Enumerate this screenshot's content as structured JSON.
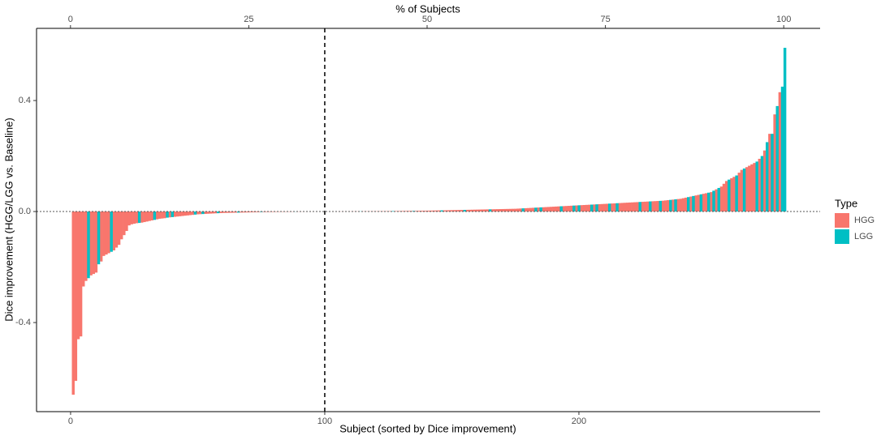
{
  "chart_data": {
    "type": "bar",
    "xlabel": "Subject (sorted by Dice improvement)",
    "x2label": "% of Subjects",
    "ylabel": "Dice improvement (HGG/LGG vs. Baseline)",
    "legend_title": "Type",
    "legend": "right",
    "xlim": [
      -13.4,
      294.9
    ],
    "xticks": [
      0,
      100,
      200
    ],
    "x2lim": [
      -4.76,
      105.1
    ],
    "x2ticks": [
      0,
      25,
      50,
      75,
      100
    ],
    "ylim": [
      -0.721,
      0.66
    ],
    "yticks": [
      -0.4,
      {
        "value": 0,
        "label": "0.0"
      },
      0.4
    ],
    "vline": 100,
    "hline": 0,
    "series": [
      {
        "name": "HGG",
        "color": "#F8766D",
        "x": [
          1,
          2,
          3,
          4,
          5,
          6,
          8,
          9,
          10,
          12,
          13,
          14,
          15,
          17,
          18,
          19,
          20,
          21,
          22,
          23,
          24,
          25,
          26,
          28,
          29,
          30,
          31,
          32,
          34,
          35,
          36,
          37,
          39,
          41,
          42,
          43,
          44,
          45,
          46,
          47,
          48,
          50,
          51,
          53,
          54,
          55,
          56,
          57,
          59,
          60,
          61,
          62,
          63,
          64,
          65,
          67,
          68,
          69,
          70,
          71,
          72,
          73,
          74,
          76,
          77,
          78,
          79,
          80,
          81,
          82,
          83,
          84,
          85,
          86,
          87,
          89,
          90,
          91,
          92,
          93,
          94,
          95,
          96,
          97,
          98,
          99,
          100,
          101,
          102,
          103,
          104,
          105,
          106,
          107,
          108,
          109,
          110,
          111,
          112,
          113,
          115,
          116,
          117,
          118,
          119,
          120,
          121,
          122,
          123,
          124,
          125,
          126,
          128,
          129,
          130,
          131,
          132,
          133,
          134,
          136,
          137,
          138,
          139,
          140,
          141,
          142,
          143,
          144,
          145,
          147,
          148,
          149,
          150,
          151,
          152,
          153,
          154,
          156,
          157,
          158,
          159,
          160,
          161,
          162,
          163,
          164,
          166,
          167,
          168,
          169,
          170,
          171,
          172,
          173,
          174,
          175,
          176,
          177,
          179,
          180,
          181,
          182,
          184,
          186,
          187,
          188,
          189,
          190,
          191,
          192,
          194,
          195,
          196,
          197,
          199,
          201,
          202,
          203,
          204,
          206,
          208,
          209,
          210,
          211,
          213,
          214,
          216,
          217,
          218,
          219,
          220,
          221,
          222,
          223,
          225,
          226,
          227,
          229,
          230,
          231,
          233,
          234,
          235,
          237,
          239,
          240,
          241,
          242,
          244,
          246,
          247,
          249,
          250,
          252,
          254,
          256,
          257,
          258,
          260,
          261,
          263,
          264,
          266,
          267,
          268,
          269,
          271,
          273,
          275,
          277,
          279
        ],
        "values": [
          -0.66,
          -0.61,
          -0.46,
          -0.45,
          -0.27,
          -0.25,
          -0.23,
          -0.225,
          -0.22,
          -0.18,
          -0.16,
          -0.155,
          -0.15,
          -0.14,
          -0.13,
          -0.12,
          -0.1,
          -0.085,
          -0.07,
          -0.05,
          -0.046,
          -0.044,
          -0.042,
          -0.04,
          -0.038,
          -0.036,
          -0.034,
          -0.032,
          -0.028,
          -0.026,
          -0.025,
          -0.024,
          -0.021,
          -0.019,
          -0.018,
          -0.017,
          -0.016,
          -0.015,
          -0.014,
          -0.013,
          -0.012,
          -0.01,
          -0.0095,
          -0.0085,
          -0.008,
          -0.0075,
          -0.007,
          -0.0065,
          -0.0055,
          -0.005,
          -0.0048,
          -0.0046,
          -0.0044,
          -0.0042,
          -0.004,
          -0.0036,
          -0.0034,
          -0.0032,
          -0.003,
          -0.0028,
          -0.0026,
          -0.0024,
          -0.0022,
          -0.0019,
          -0.0018,
          -0.0017,
          -0.0016,
          -0.0015,
          -0.0014,
          -0.0013,
          -0.0012,
          -0.0011,
          -0.001,
          -0.0009,
          -0.0008,
          -0.0006,
          -0.0005,
          -0.0004,
          -0.0003,
          -0.0003,
          -0.0002,
          -0.0002,
          -0.0001,
          -0.0001,
          -0.0001,
          0,
          0,
          0.0001,
          0.0001,
          0.0002,
          0.0002,
          0.0003,
          0.0003,
          0.0004,
          0.0004,
          0.0005,
          0.0005,
          0.0006,
          0.0006,
          0.0007,
          0.0008,
          0.0008,
          0.0009,
          0.0009,
          0.001,
          0.001,
          0.0011,
          0.0012,
          0.0013,
          0.0014,
          0.0015,
          0.0016,
          0.0018,
          0.0019,
          0.002,
          0.0021,
          0.0022,
          0.0023,
          0.0024,
          0.0026,
          0.0027,
          0.0028,
          0.0029,
          0.003,
          0.0032,
          0.0034,
          0.0036,
          0.0038,
          0.004,
          0.0044,
          0.0046,
          0.0048,
          0.005,
          0.0052,
          0.0054,
          0.0056,
          0.0058,
          0.0062,
          0.0064,
          0.0066,
          0.0068,
          0.007,
          0.0072,
          0.0074,
          0.0076,
          0.0078,
          0.0082,
          0.0084,
          0.0086,
          0.0088,
          0.009,
          0.0092,
          0.0094,
          0.0096,
          0.0098,
          0.01,
          0.0105,
          0.011,
          0.012,
          0.0125,
          0.013,
          0.0135,
          0.0145,
          0.0155,
          0.016,
          0.0165,
          0.017,
          0.0175,
          0.018,
          0.0185,
          0.0195,
          0.02,
          0.0205,
          0.021,
          0.022,
          0.023,
          0.0235,
          0.024,
          0.0245,
          0.0255,
          0.0265,
          0.027,
          0.0275,
          0.028,
          0.029,
          0.0295,
          0.0305,
          0.031,
          0.0315,
          0.032,
          0.0325,
          0.033,
          0.0335,
          0.034,
          0.035,
          0.0355,
          0.036,
          0.037,
          0.0375,
          0.038,
          0.039,
          0.04,
          0.041,
          0.043,
          0.045,
          0.046,
          0.048,
          0.05,
          0.054,
          0.058,
          0.06,
          0.064,
          0.066,
          0.07,
          0.08,
          0.09,
          0.1,
          0.11,
          0.12,
          0.125,
          0.14,
          0.15,
          0.16,
          0.165,
          0.17,
          0.175,
          0.19,
          0.22,
          0.28,
          0.35,
          0.43
        ]
      },
      {
        "name": "LGG",
        "color": "#00BFC4",
        "x": [
          7,
          11,
          16,
          27,
          33,
          38,
          40,
          49,
          52,
          58,
          66,
          75,
          88,
          114,
          127,
          135,
          146,
          155,
          165,
          178,
          183,
          185,
          193,
          198,
          200,
          205,
          207,
          212,
          215,
          224,
          228,
          232,
          236,
          238,
          243,
          245,
          248,
          251,
          253,
          255,
          259,
          262,
          265,
          270,
          272,
          274,
          276,
          278,
          280,
          281
        ],
        "values": [
          -0.24,
          -0.19,
          -0.145,
          -0.041,
          -0.03,
          -0.022,
          -0.02,
          -0.011,
          -0.009,
          -0.006,
          -0.0038,
          -0.002,
          -0.0007,
          0.0007,
          0.0017,
          0.0025,
          0.0042,
          0.006,
          0.008,
          0.0115,
          0.014,
          0.015,
          0.019,
          0.0215,
          0.0225,
          0.025,
          0.026,
          0.0285,
          0.03,
          0.0345,
          0.0365,
          0.0385,
          0.042,
          0.044,
          0.052,
          0.056,
          0.062,
          0.068,
          0.075,
          0.085,
          0.115,
          0.13,
          0.155,
          0.18,
          0.2,
          0.25,
          0.28,
          0.38,
          0.45,
          0.59
        ]
      }
    ]
  }
}
